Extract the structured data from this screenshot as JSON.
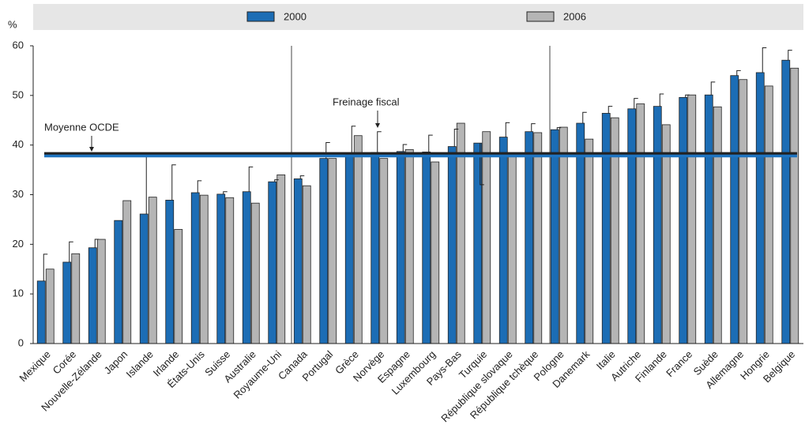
{
  "chart_data": {
    "type": "bar",
    "y_label": "%",
    "categories": [
      "Mexique",
      "Corée",
      "Nouvelle-Zélande",
      "Japon",
      "Islande",
      "Irlande",
      "États-Unis",
      "Suisse",
      "Australie",
      "Royaume-Uni",
      "Canada",
      "Portugal",
      "Grèce",
      "Norvège",
      "Espagne",
      "Luxembourg",
      "Pays-Bas",
      "Turquie",
      "République slovaque",
      "République tchèque",
      "Pologne",
      "Danemark",
      "Italie",
      "Autriche",
      "Finlande",
      "France",
      "Suède",
      "Allemagne",
      "Hongrie",
      "Belgique"
    ],
    "series": [
      {
        "name": "2000",
        "color": "#1c6db5",
        "values": [
          12.6,
          16.4,
          19.3,
          24.8,
          26.1,
          28.9,
          30.4,
          30.1,
          30.6,
          32.6,
          33.2,
          37.3,
          38.3,
          38.5,
          38.7,
          38.6,
          39.7,
          40.4,
          41.6,
          42.7,
          43.1,
          44.4,
          46.4,
          47.3,
          47.8,
          49.6,
          50.1,
          54.0,
          54.6,
          57.1
        ]
      },
      {
        "name": "2006",
        "color": "#b5b5b5",
        "values": [
          15.0,
          18.1,
          21.0,
          28.8,
          29.5,
          23.0,
          29.9,
          29.4,
          28.3,
          34.0,
          31.8,
          37.3,
          41.9,
          37.3,
          39.1,
          36.6,
          44.4,
          42.7,
          38.0,
          42.5,
          43.6,
          41.2,
          45.5,
          48.3,
          44.1,
          50.1,
          47.7,
          53.2,
          51.9,
          55.5
        ]
      }
    ],
    "errors": [
      18,
      20.5,
      21,
      null,
      38,
      36,
      32.8,
      30.6,
      35.6,
      33,
      33.8,
      40.5,
      43.8,
      42.7,
      40.1,
      42,
      43.2,
      32,
      44.5,
      44.3,
      43.5,
      46.6,
      47.8,
      49.4,
      50.3,
      50.1,
      52.7,
      55.0,
      59.6,
      59.1
    ],
    "reference_lines": [
      {
        "value": 38.3,
        "color": "#222222"
      },
      {
        "value": 37.8,
        "color": "#1f74c0"
      }
    ],
    "annotations": [
      "Moyenne OCDE",
      "Freinage fiscal"
    ],
    "ylim": [
      0,
      60
    ],
    "yticks": [
      0,
      10,
      20,
      30,
      40,
      50,
      60
    ],
    "grid": false
  }
}
